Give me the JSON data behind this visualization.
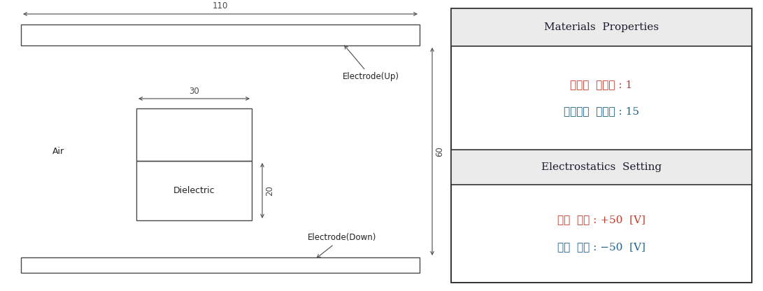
{
  "fig_width": 10.91,
  "fig_height": 4.16,
  "dpi": 100,
  "bg_color": "#ffffff",
  "line_color": "#4a4a4a",
  "dim_color": "#4a4a4a",
  "text_color": "#222222",
  "air_label": "Air",
  "dielectric_label": "Dielectric",
  "electrode_up_label": "Electrode(Up)",
  "electrode_down_label": "Electrode(Down)",
  "dim_110_label": "110",
  "dim_30_label": "30",
  "dim_20_label": "20",
  "dim_60_label": "60",
  "header1_text": "Materials  Properties",
  "header1_bg": "#ebebeb",
  "mat_line1": "공기의  유전율 : 1",
  "mat_line2": "유전체의  유전율 : 15",
  "mat_line1_color": "#c0392b",
  "mat_line2_color": "#1f618d",
  "header2_text": "Electrostatics  Setting",
  "header2_bg": "#ebebeb",
  "es_line1": "상단  전극 : +50  [V]",
  "es_line2": "하단  전극 : −50  [V]",
  "es_line1_color": "#c0392b",
  "es_line2_color": "#1f618d",
  "panel_header_color": "#1a1a2e"
}
